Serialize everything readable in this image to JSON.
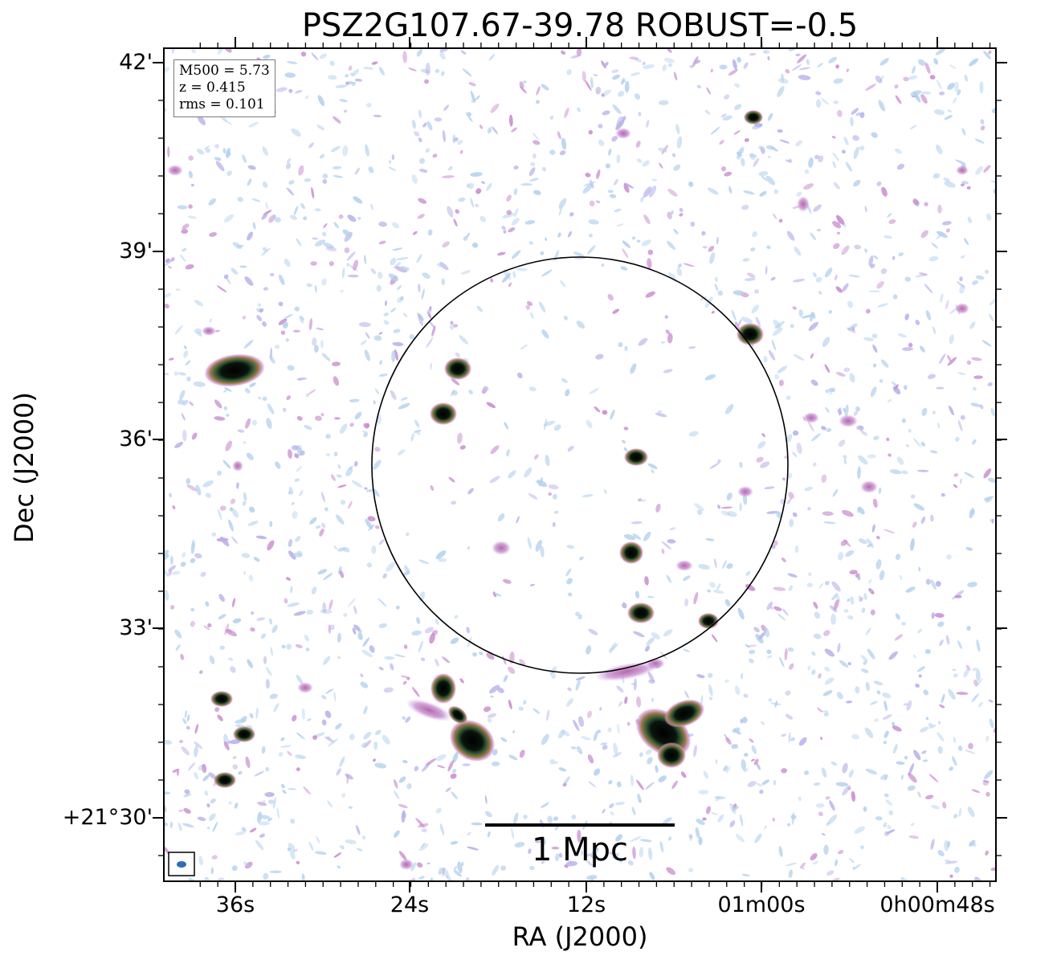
{
  "title": "PSZ2G107.67-39.78 ROBUST=-0.5",
  "axes": {
    "xlabel": "RA (J2000)",
    "ylabel": "Dec (J2000)",
    "x_ticks": [
      "36s",
      "24s",
      "12s",
      "01m00s",
      "0h00m48s"
    ],
    "y_ticks": [
      "42'",
      "39'",
      "36'",
      "33'",
      "+21°30'"
    ]
  },
  "info": {
    "mass": "M500 = 5.73",
    "redshift": "z = 0.415",
    "rms": "rms = 0.101"
  },
  "scalebar": {
    "label": "1 Mpc"
  },
  "colors": {
    "noise_light": "#b4d2ee",
    "noise_lavender": "#b8b2ea",
    "noise_pink": "#c98ccf",
    "source_ring": "#b08040",
    "source_green": "#2f5a36",
    "source_core": "#000000",
    "beam": "#2d6fb5"
  }
}
